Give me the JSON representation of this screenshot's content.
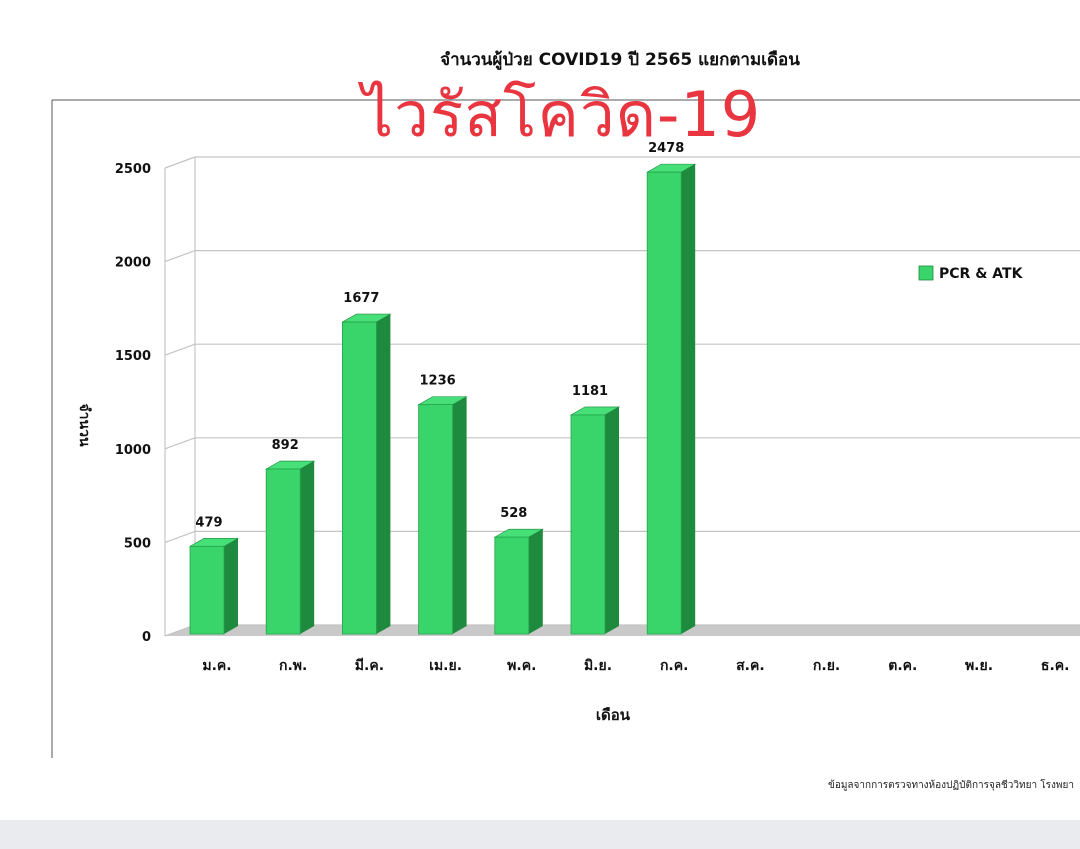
{
  "page": {
    "title_line": "จำนวนผู้ป่วย COVID19 ปี 2565 แยกตามเดือน",
    "overlay_text": "ไวรัสโควิด-19",
    "footer_note": "ข้อมูลจากการตรวจทางห้องปฏิบัติการจุลชีววิทยา โรงพยา"
  },
  "chart_data": {
    "type": "bar",
    "title": "จำนวนผู้ป่วย COVID19 ปี 2565 แยกตามเดือน",
    "xlabel": "เดือน",
    "ylabel": "จำนวน",
    "ylim": [
      0,
      2500
    ],
    "yticks": [
      0,
      500,
      1000,
      1500,
      2000,
      2500
    ],
    "grid": true,
    "legend": "right",
    "style": "3d",
    "categories": [
      "ม.ค.",
      "ก.พ.",
      "มี.ค.",
      "เม.ย.",
      "พ.ค.",
      "มิ.ย.",
      "ก.ค.",
      "ส.ค.",
      "ก.ย.",
      "ต.ค.",
      "พ.ย.",
      "ธ.ค."
    ],
    "series": [
      {
        "name": "PCR & ATK",
        "color": "#3ad56a",
        "values": [
          479,
          892,
          1677,
          1236,
          528,
          1181,
          2478,
          null,
          null,
          null,
          null,
          null
        ]
      }
    ]
  }
}
